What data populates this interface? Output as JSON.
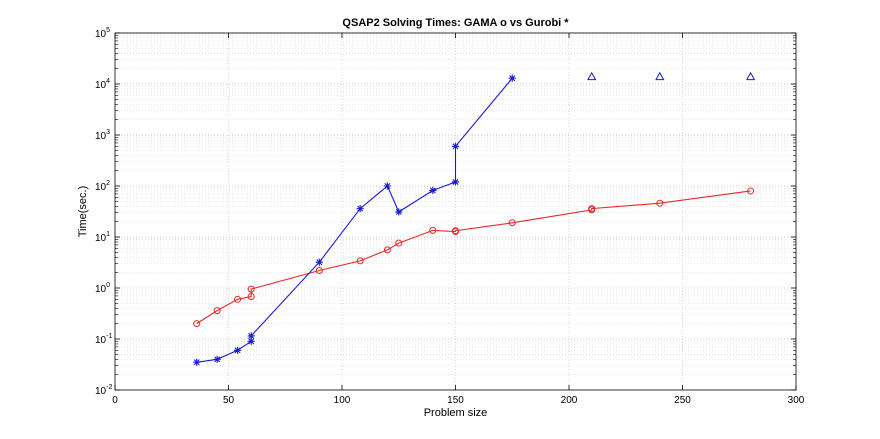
{
  "chart_data": {
    "type": "line",
    "title": "QSAP2 Solving Times: GAMA o vs Gurobi *",
    "xlabel": "Problem size",
    "ylabel": "Time(sec.)",
    "xlim": [
      0,
      300
    ],
    "ylim": [
      0.01,
      100000
    ],
    "yscale": "log",
    "grid": true,
    "x_ticks": [
      "0",
      "50",
      "100",
      "150",
      "200",
      "250",
      "300"
    ],
    "y_ticks": [
      {
        "base": "10",
        "exp": "-2"
      },
      {
        "base": "10",
        "exp": "-1"
      },
      {
        "base": "10",
        "exp": "0"
      },
      {
        "base": "10",
        "exp": "1"
      },
      {
        "base": "10",
        "exp": "2"
      },
      {
        "base": "10",
        "exp": "3"
      },
      {
        "base": "10",
        "exp": "4"
      },
      {
        "base": "10",
        "exp": "5"
      }
    ],
    "series": [
      {
        "marker": "circle",
        "color": "#e8282a",
        "connected": true,
        "x": [
          36,
          45,
          54,
          60,
          60,
          90,
          108,
          120,
          125,
          140,
          150,
          150,
          175,
          210,
          210,
          240,
          280
        ],
        "y": [
          0.2,
          0.36,
          0.6,
          0.68,
          0.95,
          2.2,
          3.4,
          5.6,
          7.6,
          13.5,
          12.8,
          13.3,
          19,
          34,
          36,
          46,
          80
        ]
      },
      {
        "marker": "asterisk",
        "color": "#1a1ad6",
        "connected": true,
        "x": [
          36,
          45,
          54,
          60,
          60,
          90,
          108,
          120,
          125,
          140,
          150,
          150,
          175
        ],
        "y": [
          0.035,
          0.04,
          0.06,
          0.09,
          0.115,
          3.2,
          36,
          100,
          31,
          82,
          120,
          600,
          13000
        ]
      },
      {
        "marker": "triangle",
        "color": "#1a1ad6",
        "connected": false,
        "x": [
          210,
          240,
          280
        ],
        "y": [
          14000,
          14000,
          14000
        ]
      }
    ]
  }
}
